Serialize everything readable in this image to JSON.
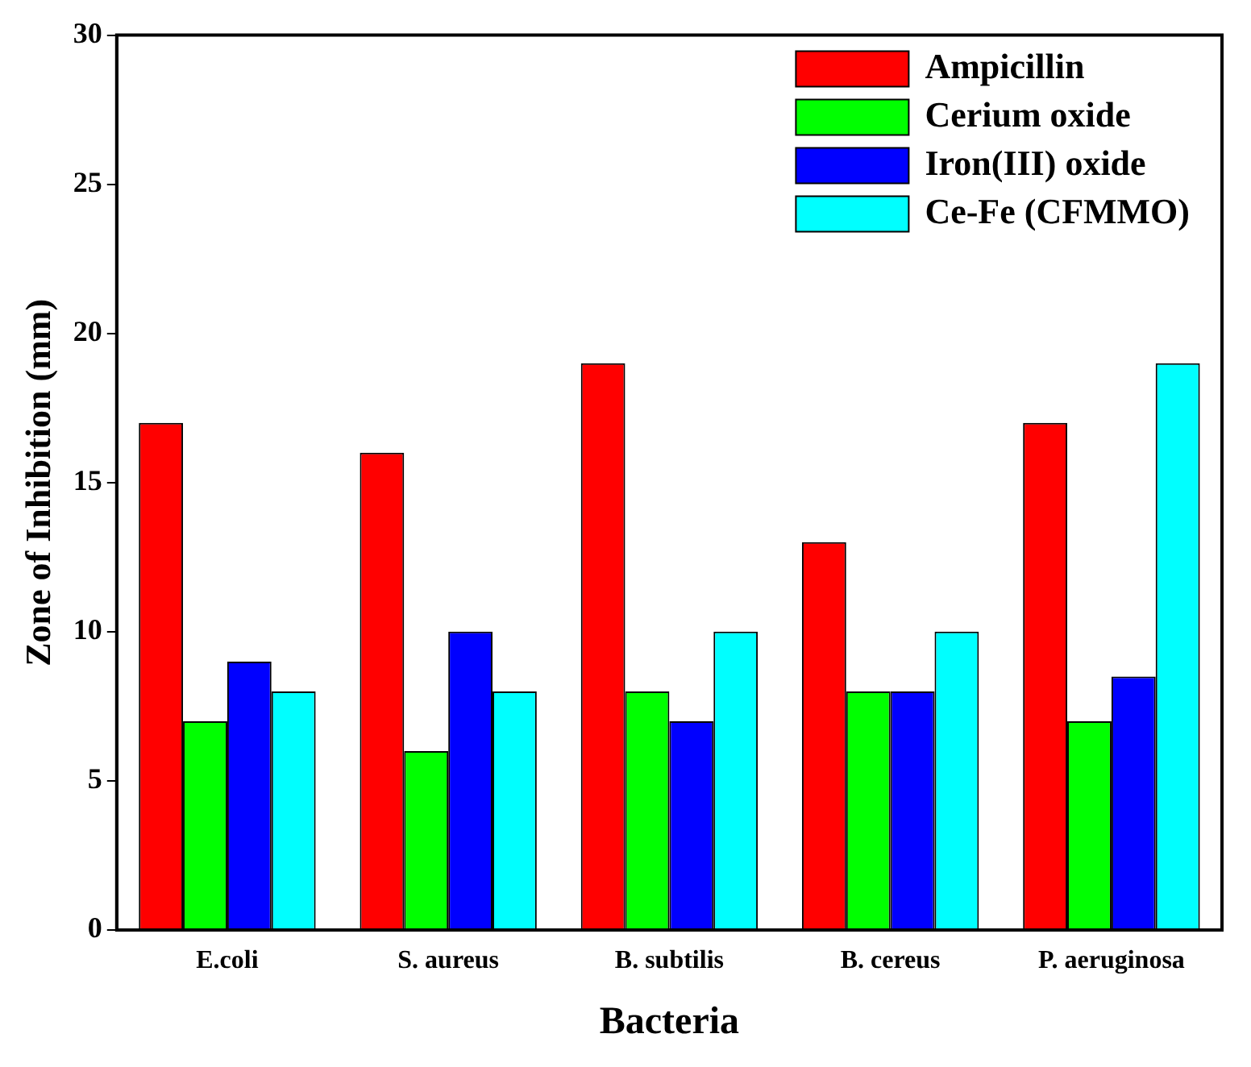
{
  "chart_data": {
    "type": "bar",
    "xlabel": "Bacteria",
    "ylabel": "Zone of Inhibition (mm)",
    "categories": [
      "E.coli",
      "S. aureus",
      "B. subtilis",
      "B. cereus",
      "P. aeruginosa"
    ],
    "series": [
      {
        "name": "Ampicillin",
        "color": "#ff0000",
        "values": [
          17,
          16,
          19,
          13,
          17
        ]
      },
      {
        "name": "Cerium oxide",
        "color": "#00ff00",
        "values": [
          7,
          6,
          8,
          8,
          7
        ]
      },
      {
        "name": "Iron(III) oxide",
        "color": "#0000ff",
        "values": [
          9,
          10,
          7,
          8,
          8.5
        ]
      },
      {
        "name": "Ce-Fe (CFMMO)",
        "color": "#00ffff",
        "values": [
          8,
          8,
          10,
          10,
          19
        ]
      }
    ],
    "ylim": [
      0,
      30
    ],
    "yticks": [
      0,
      5,
      10,
      15,
      20,
      25,
      30
    ],
    "grid": false,
    "legend": "top right"
  }
}
